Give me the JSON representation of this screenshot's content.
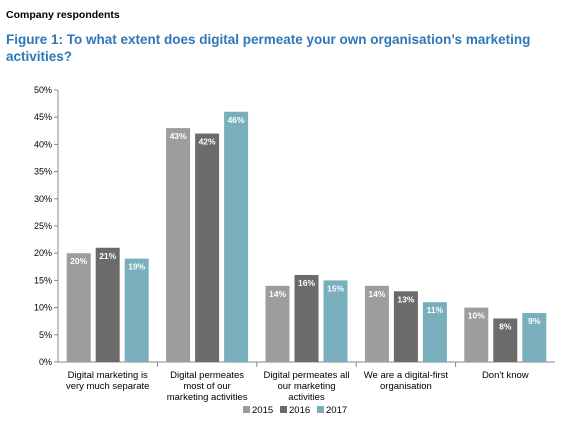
{
  "header": {
    "respondents": "Company respondents",
    "title": "Figure 1: To what extent does digital permeate your own organisation’s marketing activities?"
  },
  "chart_data": {
    "type": "bar",
    "title": "Figure 1: To what extent does digital permeate your own organisation’s marketing activities?",
    "categories": [
      [
        "Digital marketing is",
        "very much separate"
      ],
      [
        "Digital permeates",
        "most of our",
        "marketing activities"
      ],
      [
        "Digital permeates all",
        "our marketing",
        "activities"
      ],
      [
        "We are a digital-first",
        "organisation"
      ],
      [
        "Don't know"
      ]
    ],
    "series": [
      {
        "name": "2015",
        "color": "#9d9d9d",
        "values": [
          20,
          43,
          14,
          14,
          10
        ]
      },
      {
        "name": "2016",
        "color": "#6b6b6b",
        "values": [
          21,
          42,
          16,
          13,
          8
        ]
      },
      {
        "name": "2017",
        "color": "#79aebd",
        "values": [
          19,
          46,
          15,
          11,
          9
        ]
      }
    ],
    "yticks": [
      "0%",
      "5%",
      "10%",
      "15%",
      "20%",
      "25%",
      "30%",
      "35%",
      "40%",
      "45%",
      "50%"
    ],
    "ylim": [
      0,
      50
    ],
    "value_suffix": "%",
    "grid": false,
    "legend_position": "bottom"
  }
}
